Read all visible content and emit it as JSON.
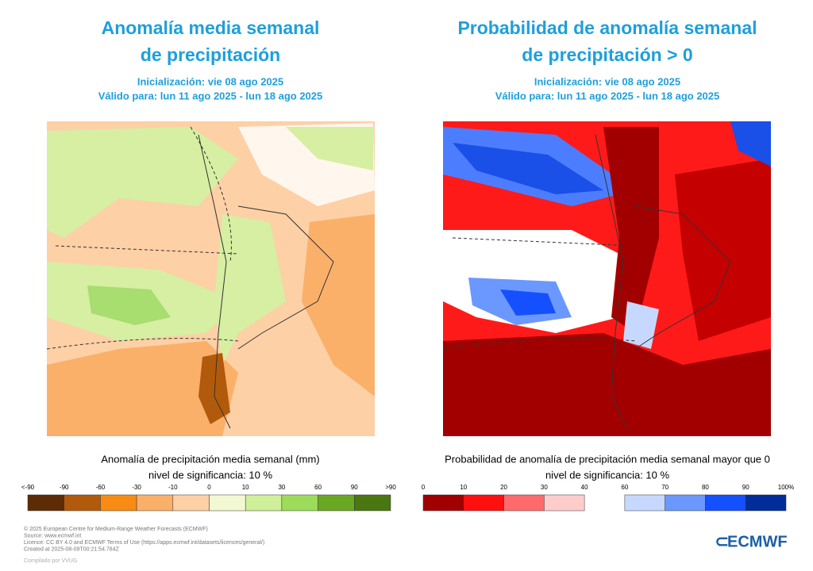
{
  "panels": [
    {
      "title": [
        "Anomalía media semanal",
        "de precipitación"
      ],
      "init": "Inicialización: vie 08 ago 2025",
      "valid": "Válido para: lun 11 ago 2025 - lun 18 ago 2025",
      "caption": "Anomalía de precipitación media semanal (mm)",
      "significance": "nivel de significancia: 10 %",
      "colorbar": {
        "labels": [
          "<-90",
          "-90",
          "-60",
          "-30",
          "-10",
          "0",
          "10",
          "30",
          "60",
          "90",
          ">90"
        ],
        "colors": [
          "#5c2c06",
          "#b25a0c",
          "#f88b14",
          "#fbb06a",
          "#fdd0a6",
          "#f2f8d2",
          "#d0ef9a",
          "#9ddc5a",
          "#6aa824",
          "#4a7712"
        ]
      }
    },
    {
      "title": [
        "Probabilidad de anomalía semanal",
        "de precipitación > 0"
      ],
      "init": "Inicialización: vie 08 ago 2025",
      "valid": "Válido para: lun 11 ago 2025 - lun 18 ago 2025",
      "caption": "Probabilidad de anomalía de precipitación media semanal mayor que 0",
      "significance": "nivel de significancia: 10 %",
      "colorbar": {
        "labels": [
          "0",
          "10",
          "20",
          "30",
          "40",
          "60",
          "70",
          "80",
          "90",
          "100%"
        ],
        "colors": [
          "#a20000",
          "#ff1010",
          "#ff6a6a",
          "#ffcccc",
          null,
          "#c6d8ff",
          "#6b98ff",
          "#1550ff",
          "#002d99"
        ]
      }
    }
  ],
  "footer": {
    "lines": [
      "© 2025 European Centre for Medium-Range Weather Forecasts (ECMWF)",
      "Source: www.ecmwf.int",
      "Licence: CC BY 4.0 and ECMWF Terms of Use (https://apps.ecmwf.int/datasets/licences/general/)",
      "Created at 2025-08-09T00:21:54.784Z"
    ],
    "credit": "Compilado por VVUG",
    "logo": "ECMWF"
  }
}
